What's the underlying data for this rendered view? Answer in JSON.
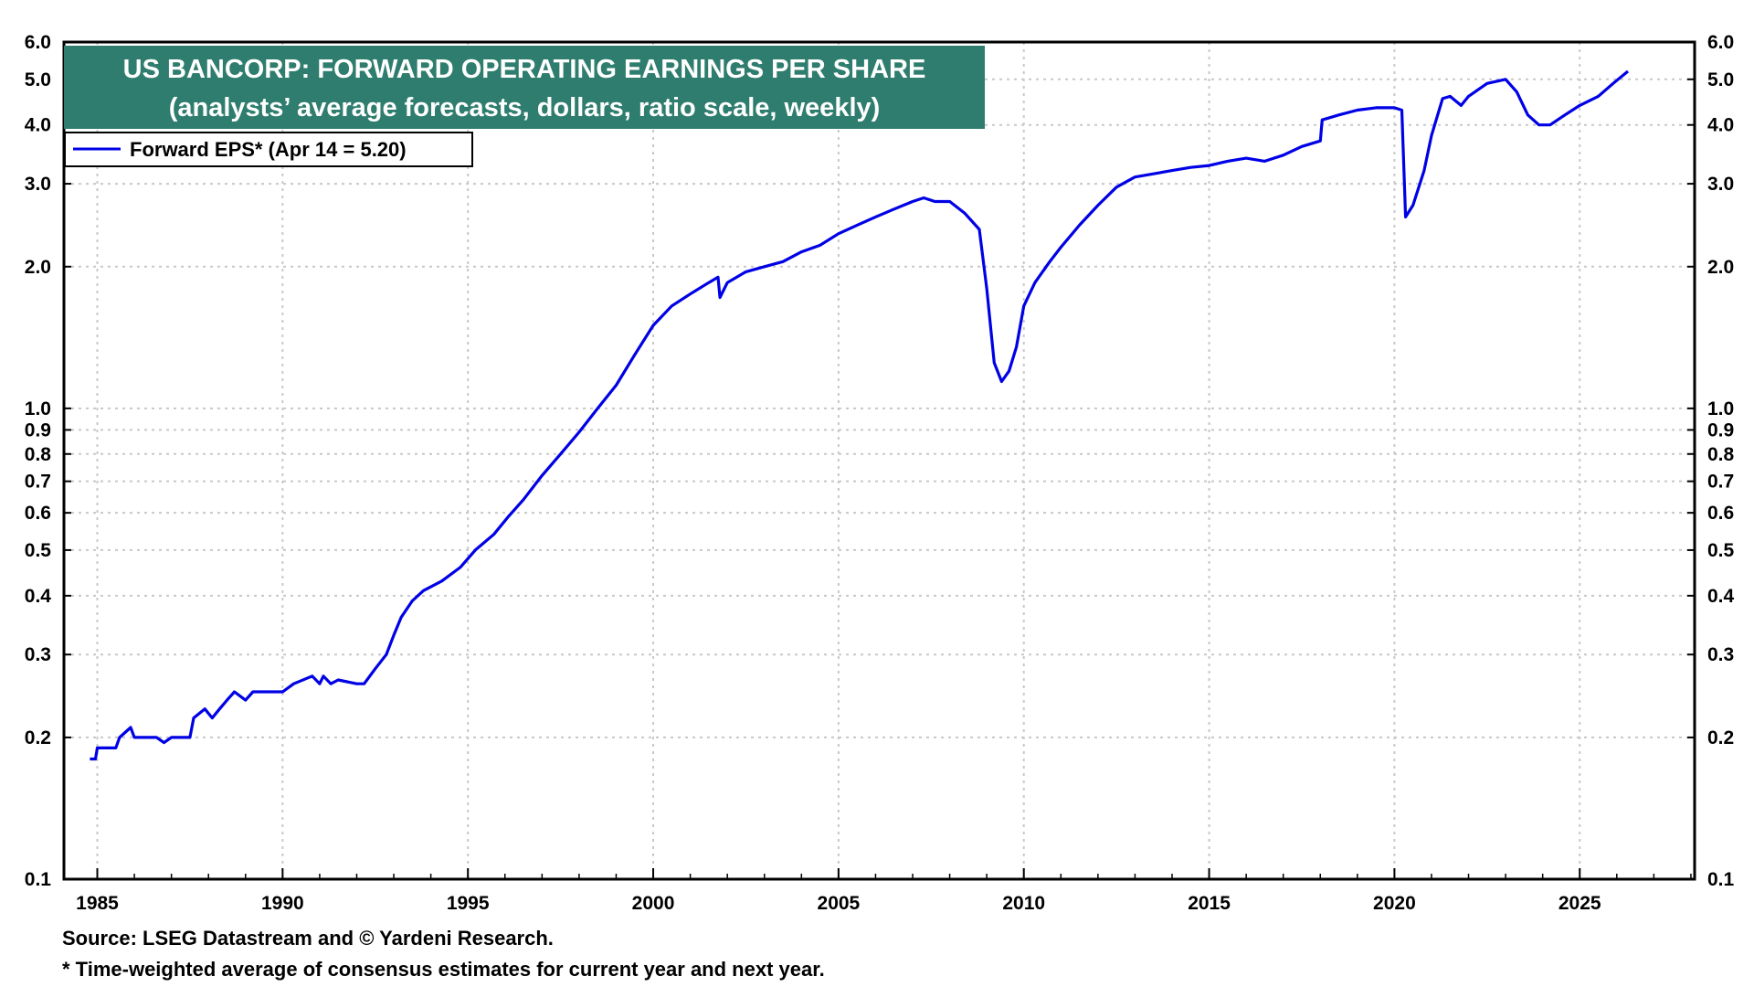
{
  "chart_data": {
    "type": "line",
    "title": "US BANCORP: FORWARD OPERATING EARNINGS PER SHARE",
    "subtitle": "(analysts’ average forecasts, dollars, ratio scale, weekly)",
    "legend": {
      "label": "Forward EPS* (Apr 14 = 5.20)",
      "placement": "top-left"
    },
    "y_scale": "log",
    "ylim": [
      0.1,
      6.0
    ],
    "xlim": [
      1984.1,
      2028.1
    ],
    "y_ticks": [
      "0.1",
      "0.2",
      "0.3",
      "0.4",
      "0.5",
      "0.6",
      "0.7",
      "0.8",
      "0.9",
      "1.0",
      "2.0",
      "3.0",
      "4.0",
      "5.0",
      "6.0"
    ],
    "x_ticks": [
      "1985",
      "1990",
      "1995",
      "2000",
      "2005",
      "2010",
      "2015",
      "2020",
      "2025"
    ],
    "grid": true,
    "series": [
      {
        "name": "Forward EPS*",
        "color": "#0000e6",
        "x": [
          1984.8,
          1984.95,
          1985.0,
          1985.5,
          1985.6,
          1985.9,
          1986.0,
          1986.6,
          1986.8,
          1987.0,
          1987.5,
          1987.6,
          1987.9,
          1988.1,
          1988.3,
          1988.5,
          1988.7,
          1989.0,
          1989.2,
          1989.5,
          1990.0,
          1990.3,
          1990.8,
          1991.0,
          1991.1,
          1991.3,
          1991.5,
          1992.0,
          1992.2,
          1992.5,
          1992.8,
          1993.0,
          1993.2,
          1993.5,
          1993.8,
          1994.3,
          1994.8,
          1995.2,
          1995.7,
          1996.1,
          1996.5,
          1997.0,
          1997.5,
          1998.0,
          1998.5,
          1999.0,
          1999.5,
          2000.0,
          2000.5,
          2001.0,
          2001.5,
          2001.75,
          2001.8,
          2002.0,
          2002.5,
          2003.0,
          2003.5,
          2004.0,
          2004.5,
          2005.0,
          2005.5,
          2006.0,
          2006.5,
          2007.0,
          2007.3,
          2007.6,
          2008.0,
          2008.4,
          2008.8,
          2009.0,
          2009.2,
          2009.4,
          2009.6,
          2009.8,
          2010.0,
          2010.3,
          2010.7,
          2011.0,
          2011.5,
          2012.0,
          2012.5,
          2013.0,
          2013.5,
          2014.0,
          2014.5,
          2015.0,
          2015.5,
          2016.0,
          2016.5,
          2017.0,
          2017.5,
          2018.0,
          2018.05,
          2018.5,
          2019.0,
          2019.5,
          2020.0,
          2020.2,
          2020.3,
          2020.5,
          2020.8,
          2021.0,
          2021.3,
          2021.5,
          2021.8,
          2022.0,
          2022.5,
          2023.0,
          2023.3,
          2023.6,
          2023.9,
          2024.2,
          2024.6,
          2025.0,
          2025.5,
          2025.9,
          2026.3
        ],
        "values": [
          0.18,
          0.18,
          0.19,
          0.19,
          0.2,
          0.21,
          0.2,
          0.2,
          0.195,
          0.2,
          0.2,
          0.22,
          0.23,
          0.22,
          0.23,
          0.24,
          0.25,
          0.24,
          0.25,
          0.25,
          0.25,
          0.26,
          0.27,
          0.26,
          0.27,
          0.26,
          0.265,
          0.26,
          0.26,
          0.28,
          0.3,
          0.33,
          0.36,
          0.39,
          0.41,
          0.43,
          0.46,
          0.5,
          0.54,
          0.59,
          0.64,
          0.72,
          0.8,
          0.89,
          1.0,
          1.12,
          1.3,
          1.5,
          1.65,
          1.75,
          1.85,
          1.9,
          1.72,
          1.85,
          1.95,
          2.0,
          2.05,
          2.15,
          2.22,
          2.35,
          2.45,
          2.55,
          2.65,
          2.75,
          2.8,
          2.75,
          2.75,
          2.6,
          2.4,
          1.8,
          1.25,
          1.14,
          1.2,
          1.35,
          1.65,
          1.85,
          2.05,
          2.2,
          2.45,
          2.7,
          2.95,
          3.1,
          3.15,
          3.2,
          3.25,
          3.28,
          3.35,
          3.4,
          3.35,
          3.45,
          3.6,
          3.7,
          4.1,
          4.2,
          4.3,
          4.35,
          4.35,
          4.3,
          2.55,
          2.7,
          3.2,
          3.8,
          4.55,
          4.6,
          4.4,
          4.6,
          4.9,
          5.0,
          4.7,
          4.2,
          4.0,
          4.0,
          4.2,
          4.4,
          4.6,
          4.9,
          5.2
        ]
      }
    ]
  },
  "footer": {
    "source": "Source: LSEG Datastream and © Yardeni Research.",
    "note": "* Time-weighted average of consensus estimates for current year and next year."
  },
  "colors": {
    "title_box": "#2e7d6e",
    "line": "#0000e6",
    "grid": "#c8c8c8",
    "axis": "#000000"
  }
}
